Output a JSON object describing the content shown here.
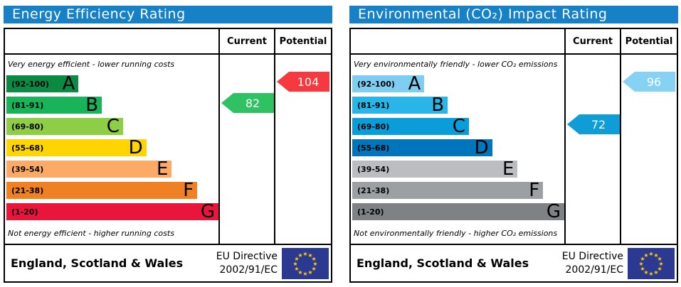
{
  "colors": {
    "header_bg": "#1681c6",
    "eu_flag_bg": "#2b3990",
    "eu_star": "#ffcc00",
    "border": "#000000"
  },
  "charts": [
    {
      "title": "Energy Efficiency Rating",
      "columns": {
        "current": "Current",
        "potential": "Potential"
      },
      "top_caption": "Very energy efficient - lower running costs",
      "bottom_caption": "Not energy efficient - higher running costs",
      "bands": [
        {
          "letter": "A",
          "range": "(92-100)",
          "color": "#0b8a44",
          "width_pct": 34
        },
        {
          "letter": "B",
          "range": "(81-91)",
          "color": "#19b459",
          "width_pct": 45
        },
        {
          "letter": "C",
          "range": "(69-80)",
          "color": "#8dce46",
          "width_pct": 55
        },
        {
          "letter": "D",
          "range": "(55-68)",
          "color": "#ffd500",
          "width_pct": 66
        },
        {
          "letter": "E",
          "range": "(39-54)",
          "color": "#fcaa65",
          "width_pct": 78
        },
        {
          "letter": "F",
          "range": "(21-38)",
          "color": "#ef8023",
          "width_pct": 90
        },
        {
          "letter": "G",
          "range": "(1-20)",
          "color": "#e9153b",
          "width_pct": 100
        }
      ],
      "current": {
        "value": "82",
        "row": 1,
        "color": "#2fc162"
      },
      "potential": {
        "value": "104",
        "row": 0,
        "color": "#f5393f"
      },
      "footer": {
        "region": "England, Scotland & Wales",
        "directive_line1": "EU Directive",
        "directive_line2": "2002/91/EC"
      }
    },
    {
      "title": "Environmental (CO₂) Impact Rating",
      "columns": {
        "current": "Current",
        "potential": "Potential"
      },
      "top_caption": "Very environmentally friendly - lower CO₂ emissions",
      "bottom_caption": "Not environmentally friendly - higher CO₂ emissions",
      "bands": [
        {
          "letter": "A",
          "range": "(92-100)",
          "color": "#7ecef2",
          "width_pct": 34
        },
        {
          "letter": "B",
          "range": "(81-91)",
          "color": "#29b5e8",
          "width_pct": 45
        },
        {
          "letter": "C",
          "range": "(69-80)",
          "color": "#0b9dd9",
          "width_pct": 55
        },
        {
          "letter": "D",
          "range": "(55-68)",
          "color": "#0075bb",
          "width_pct": 66
        },
        {
          "letter": "E",
          "range": "(39-54)",
          "color": "#bcbdc0",
          "width_pct": 78
        },
        {
          "letter": "F",
          "range": "(21-38)",
          "color": "#9da0a3",
          "width_pct": 90
        },
        {
          "letter": "G",
          "range": "(1-20)",
          "color": "#7f8285",
          "width_pct": 100
        }
      ],
      "current": {
        "value": "72",
        "row": 2,
        "color": "#0f9dd8"
      },
      "potential": {
        "value": "96",
        "row": 0,
        "color": "#86d2f5"
      },
      "footer": {
        "region": "England, Scotland & Wales",
        "directive_line1": "EU Directive",
        "directive_line2": "2002/91/EC"
      }
    }
  ],
  "chart_data": [
    {
      "type": "bar",
      "title": "Energy Efficiency Rating",
      "categories": [
        "A (92-100)",
        "B (81-91)",
        "C (69-80)",
        "D (55-68)",
        "E (39-54)",
        "F (21-38)",
        "G (1-20)"
      ],
      "values": [
        34,
        45,
        55,
        66,
        78,
        90,
        100
      ],
      "markers": {
        "current": 82,
        "potential": 104
      },
      "current_band": "B",
      "potential_band": "A",
      "footnote_top": "Very energy efficient - lower running costs",
      "footnote_bottom": "Not energy efficient - higher running costs",
      "legend_position": "top-right-columns"
    },
    {
      "type": "bar",
      "title": "Environmental (CO₂) Impact Rating",
      "categories": [
        "A (92-100)",
        "B (81-91)",
        "C (69-80)",
        "D (55-68)",
        "E (39-54)",
        "F (21-38)",
        "G (1-20)"
      ],
      "values": [
        34,
        45,
        55,
        66,
        78,
        90,
        100
      ],
      "markers": {
        "current": 72,
        "potential": 96
      },
      "current_band": "C",
      "potential_band": "A",
      "footnote_top": "Very environmentally friendly - lower CO₂ emissions",
      "footnote_bottom": "Not environmentally friendly - higher CO₂ emissions",
      "legend_position": "top-right-columns"
    }
  ]
}
